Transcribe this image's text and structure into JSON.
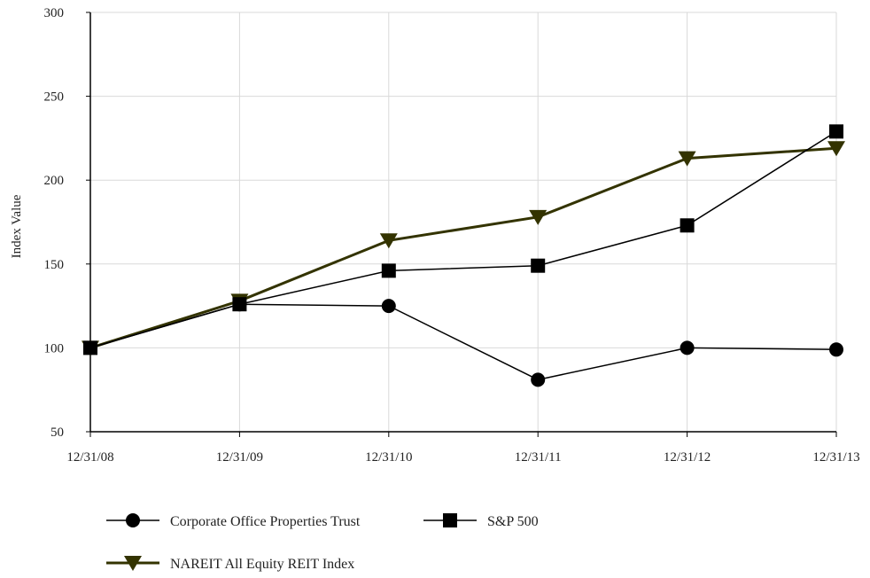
{
  "chart_data": {
    "type": "line",
    "title": "",
    "xlabel": "",
    "ylabel": "Index Value",
    "categories": [
      "12/31/08",
      "12/31/09",
      "12/31/10",
      "12/31/11",
      "12/31/12",
      "12/31/13"
    ],
    "ylim": [
      50,
      300
    ],
    "yticks": [
      50,
      100,
      150,
      200,
      250,
      300
    ],
    "grid": true,
    "legend_position": "bottom",
    "series": [
      {
        "name": "Corporate Office Properties Trust",
        "values": [
          100,
          126,
          125,
          81,
          100,
          99
        ],
        "marker": "circle",
        "color": "#000000"
      },
      {
        "name": "S&P 500",
        "values": [
          100,
          126,
          146,
          149,
          173,
          229
        ],
        "marker": "square",
        "color": "#000000"
      },
      {
        "name": "NAREIT All Equity REIT Index",
        "values": [
          100,
          128,
          164,
          178,
          213,
          219
        ],
        "marker": "triangle-down",
        "color": "#333300"
      }
    ]
  }
}
